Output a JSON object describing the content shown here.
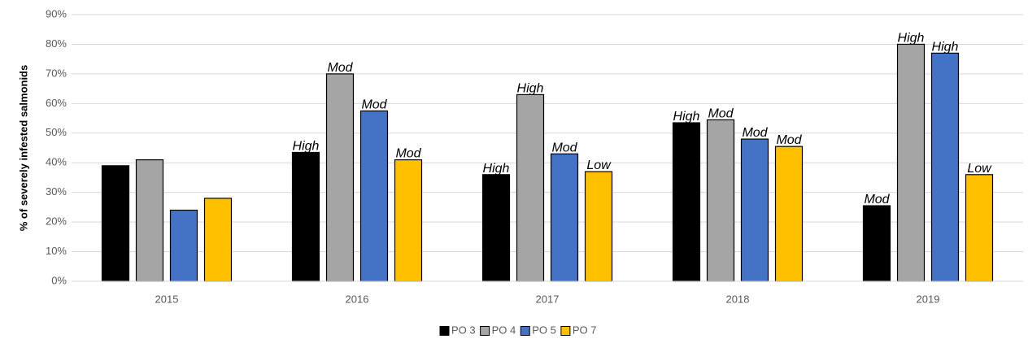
{
  "chart_data": {
    "type": "bar",
    "y_label": "% of severely infested salmonids",
    "categories": [
      "2015",
      "2016",
      "2017",
      "2018",
      "2019"
    ],
    "series": [
      {
        "name": "PO 3",
        "color": "#000000",
        "values": [
          39,
          43.5,
          36,
          53.5,
          25.5
        ],
        "annotations": [
          null,
          "High",
          "High",
          "High",
          "Mod"
        ]
      },
      {
        "name": "PO 4",
        "color": "#a5a5a5",
        "values": [
          41,
          70,
          63,
          54.5,
          80
        ],
        "annotations": [
          null,
          "Mod",
          "High",
          "Mod",
          "High"
        ]
      },
      {
        "name": "PO 5",
        "color": "#4472c4",
        "values": [
          24,
          57.5,
          43,
          48,
          77
        ],
        "annotations": [
          null,
          "Mod",
          "Mod",
          "Mod",
          "High"
        ]
      },
      {
        "name": "PO 7",
        "color": "#ffc000",
        "values": [
          28,
          41,
          37,
          45.5,
          36
        ],
        "annotations": [
          null,
          "Mod",
          "Low",
          "Mod",
          "Low"
        ]
      }
    ],
    "ylim": [
      0,
      90
    ],
    "yticks": [
      {
        "value": 0,
        "label": "0%"
      },
      {
        "value": 10,
        "label": "10%"
      },
      {
        "value": 20,
        "label": "20%"
      },
      {
        "value": 30,
        "label": "30%"
      },
      {
        "value": 40,
        "label": "40%"
      },
      {
        "value": 50,
        "label": "50%"
      },
      {
        "value": 60,
        "label": "60%"
      },
      {
        "value": 70,
        "label": "70%"
      },
      {
        "value": 80,
        "label": "80%"
      },
      {
        "value": 90,
        "label": "90%"
      }
    ],
    "grid": true,
    "legend": "bottom"
  }
}
